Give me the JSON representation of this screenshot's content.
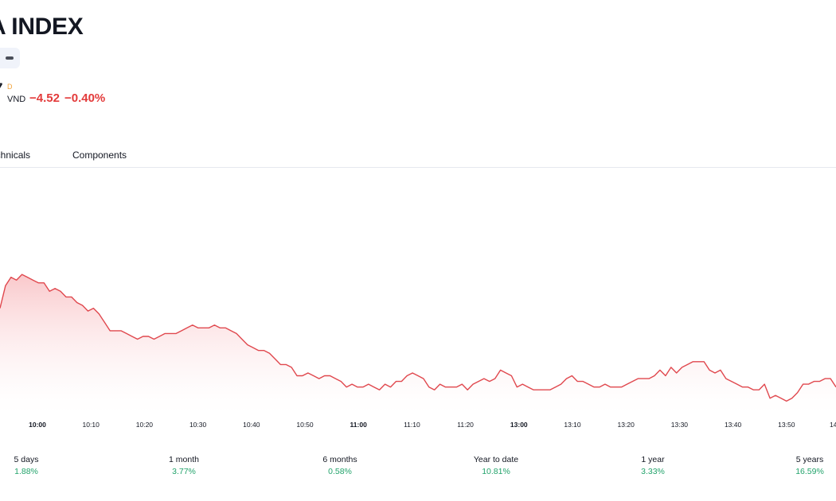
{
  "header": {
    "title": "A INDEX",
    "price_tail": "7",
    "interval_badge": "D",
    "currency": "VND",
    "change_abs": "−4.52",
    "change_pct": "−0.40%"
  },
  "tabs": [
    {
      "label": "echnicals"
    },
    {
      "label": "Components"
    }
  ],
  "colors": {
    "line": "#e0484e",
    "fill_top": "#f9c5c8",
    "fill_bottom": "#ffffff",
    "negative": "#e33b3b",
    "positive": "#22a36b"
  },
  "chart_data": {
    "type": "area",
    "x_ticks": [
      "10:00",
      "10:10",
      "10:20",
      "10:30",
      "10:40",
      "10:50",
      "11:00",
      "11:10",
      "11:20",
      "13:00",
      "13:10",
      "13:20",
      "13:30",
      "13:40",
      "13:50",
      "14"
    ],
    "bold_ticks": [
      "10:00",
      "11:00",
      "13:00"
    ],
    "y": [
      1140,
      1148,
      1151,
      1150,
      1152,
      1151,
      1150,
      1149,
      1149,
      1146,
      1147,
      1146,
      1144,
      1144,
      1142,
      1141,
      1139,
      1140,
      1138,
      1135,
      1132,
      1132,
      1132,
      1131,
      1130,
      1129,
      1130,
      1130,
      1129,
      1130,
      1131,
      1131,
      1131,
      1132,
      1133,
      1134,
      1133,
      1133,
      1133,
      1134,
      1133,
      1133,
      1132,
      1131,
      1129,
      1127,
      1126,
      1125,
      1125,
      1124,
      1122,
      1120,
      1120,
      1119,
      1116,
      1116,
      1117,
      1116,
      1115,
      1116,
      1116,
      1115,
      1114,
      1112,
      1113,
      1112,
      1112,
      1113,
      1112,
      1111,
      1113,
      1112,
      1114,
      1114,
      1116,
      1117,
      1116,
      1115,
      1112,
      1111,
      1113,
      1112,
      1112,
      1112,
      1113,
      1111,
      1113,
      1114,
      1115,
      1114,
      1115,
      1118,
      1117,
      1116,
      1112,
      1113,
      1112,
      1111,
      1111,
      1111,
      1111,
      1112,
      1113,
      1115,
      1116,
      1114,
      1114,
      1113,
      1112,
      1112,
      1113,
      1112,
      1112,
      1112,
      1113,
      1114,
      1115,
      1115,
      1115,
      1116,
      1118,
      1116,
      1119,
      1117,
      1119,
      1120,
      1121,
      1121,
      1121,
      1118,
      1117,
      1118,
      1115,
      1114,
      1113,
      1112,
      1112,
      1111,
      1111,
      1113,
      1108,
      1109,
      1108,
      1107,
      1108,
      1110,
      1113,
      1113,
      1114,
      1114,
      1115,
      1115,
      1112
    ]
  },
  "performance": [
    {
      "label": "5 days",
      "value": "1.88%"
    },
    {
      "label": "1 month",
      "value": "3.77%"
    },
    {
      "label": "6 months",
      "value": "0.58%"
    },
    {
      "label": "Year to date",
      "value": "10.81%"
    },
    {
      "label": "1 year",
      "value": "3.33%"
    },
    {
      "label": "5 years",
      "value": "16.59%"
    }
  ]
}
